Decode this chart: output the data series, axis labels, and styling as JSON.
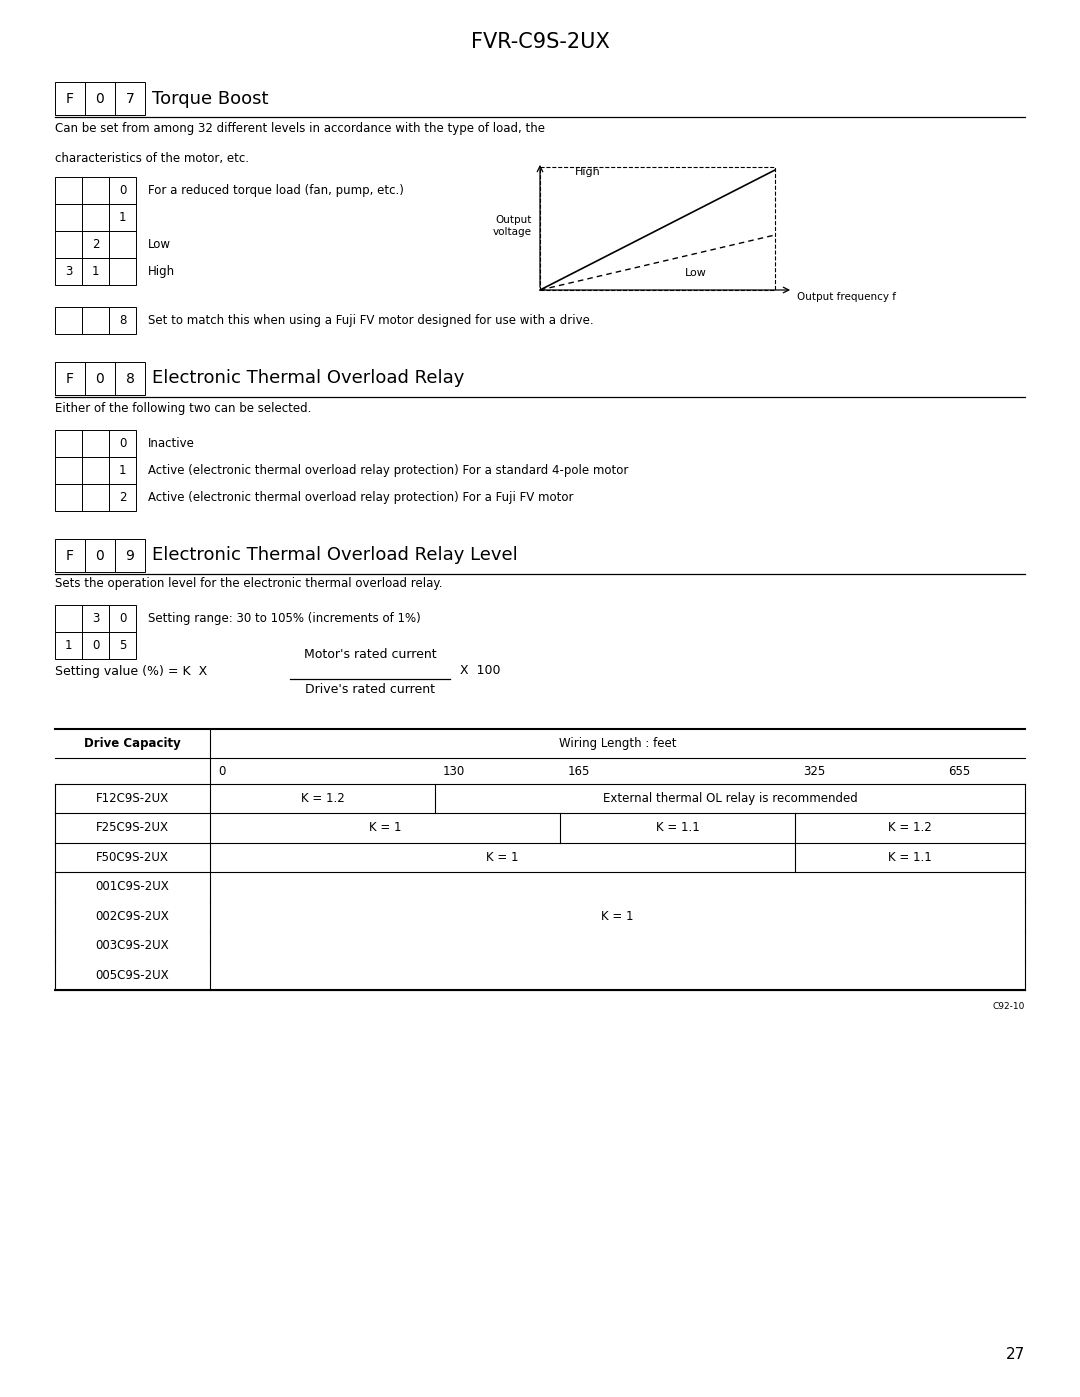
{
  "title": "FVR-C9S-2UX",
  "bg_color": "#ffffff",
  "section1_header": [
    "F",
    "0",
    "7"
  ],
  "section1_title": "Torque Boost",
  "section1_desc1": "Can be set from among 32 different levels in accordance with the type of load, the",
  "section1_desc2": "characteristics of the motor, etc.",
  "section1_grid": [
    [
      "",
      "",
      "0"
    ],
    [
      "",
      "",
      "1"
    ],
    [
      "",
      "2",
      ""
    ],
    [
      "3",
      "1",
      ""
    ]
  ],
  "section1_grid_labels": [
    "For a reduced torque load (fan, pump, etc.)",
    "",
    "Low",
    "High"
  ],
  "section1_row8_label": "Set to match this when using a Fuji FV motor designed for use with a drive.",
  "section2_header": [
    "F",
    "0",
    "8"
  ],
  "section2_title": "Electronic Thermal Overload Relay",
  "section2_desc": "Either of the following two can be selected.",
  "section2_grid": [
    [
      "",
      "",
      "0"
    ],
    [
      "",
      "",
      "1"
    ],
    [
      "",
      "",
      "2"
    ]
  ],
  "section2_labels": [
    "Inactive",
    "Active (electronic thermal overload relay protection) For a standard 4-pole motor",
    "Active (electronic thermal overload relay protection) For a Fuji FV motor"
  ],
  "section3_header": [
    "F",
    "0",
    "9"
  ],
  "section3_title": "Electronic Thermal Overload Relay Level",
  "section3_desc": "Sets the operation level for the electronic thermal overload relay.",
  "section3_grid": [
    [
      "",
      "3",
      "0"
    ],
    [
      "1",
      "0",
      "5"
    ]
  ],
  "section3_labels": [
    "Setting range: 30 to 105% (increments of 1%)",
    ""
  ],
  "formula_left": "Setting value (%) = K  X",
  "formula_numerator": "Motor's rated current",
  "formula_denominator": "Drive's rated current",
  "formula_right": "X  100",
  "table_header1": "Drive Capacity",
  "table_header2": "Wiring Length : feet",
  "table_wiring_vals": [
    "0",
    "130",
    "165",
    "325",
    "655"
  ],
  "footnote": "C92-10",
  "page_number": "27",
  "diag_high_label": "High",
  "diag_low_label": "Low",
  "diag_xaxis_label": "Output frequency f",
  "diag_yaxis_label": "Output\nvoltage"
}
